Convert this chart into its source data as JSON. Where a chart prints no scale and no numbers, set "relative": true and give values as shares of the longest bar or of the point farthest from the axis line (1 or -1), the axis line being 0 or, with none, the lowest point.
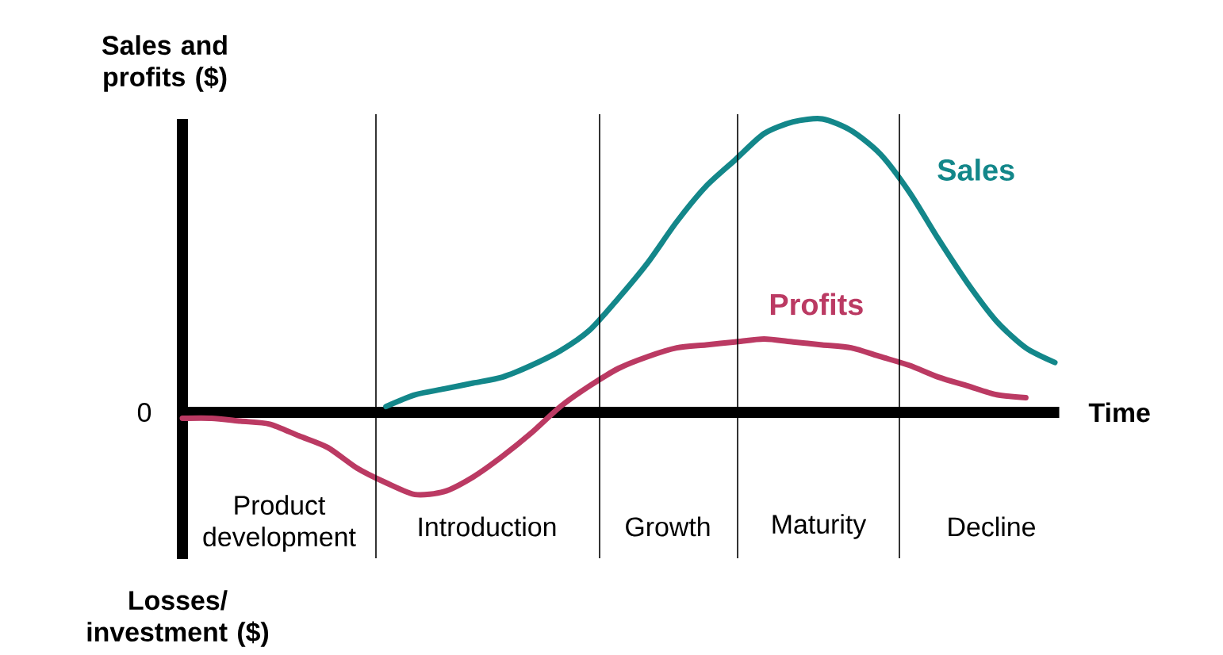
{
  "chart_data": {
    "type": "line",
    "relative": true,
    "xlabel": "Time",
    "ylabel": "Sales and profits ($)",
    "annotations": [
      "0",
      "Losses/ investment ($)",
      "Product development",
      "Introduction",
      "Growth",
      "Maturity",
      "Decline"
    ],
    "categories": [
      null,
      null,
      null,
      null,
      null,
      null,
      null,
      null,
      null,
      null,
      null,
      null,
      null,
      null,
      null,
      null,
      null,
      null,
      null,
      null,
      null,
      null,
      null,
      null,
      null,
      null,
      null,
      null,
      null,
      null,
      null
    ],
    "series": [
      {
        "name": "Sales",
        "color": "#13878a",
        "values": [
          null,
          null,
          null,
          null,
          null,
          null,
          null,
          0.02,
          0.06,
          0.08,
          0.1,
          0.12,
          0.16,
          0.21,
          0.28,
          0.39,
          0.51,
          0.65,
          0.77,
          0.86,
          0.95,
          0.99,
          1.0,
          0.96,
          0.88,
          0.75,
          0.59,
          0.44,
          0.31,
          0.22,
          0.17
        ]
      },
      {
        "name": "Profits",
        "color": "#bb3a63",
        "values": [
          -0.02,
          -0.02,
          -0.03,
          -0.04,
          -0.08,
          -0.12,
          -0.19,
          -0.24,
          -0.28,
          -0.27,
          -0.22,
          -0.15,
          -0.07,
          0.02,
          0.09,
          0.15,
          0.19,
          0.22,
          0.23,
          0.24,
          0.25,
          0.24,
          0.23,
          0.22,
          0.19,
          0.16,
          0.12,
          0.09,
          0.06,
          0.05,
          null
        ]
      }
    ]
  }
}
